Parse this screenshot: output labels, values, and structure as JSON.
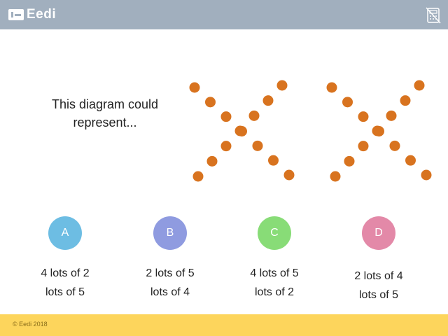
{
  "header": {
    "brand": "Eedi",
    "calculator_icon": "calculator-disabled-icon",
    "background_color": "#a1afbe"
  },
  "question": {
    "text": "This diagram could represent..."
  },
  "diagram": {
    "dot_color": "#d8731f",
    "crosses": [
      {
        "arm_a_dots": 7,
        "arm_b_dots": 7,
        "center_dots": 2
      },
      {
        "arm_a_dots": 7,
        "arm_b_dots": 7,
        "center_dots": 2
      }
    ]
  },
  "options": [
    {
      "letter": "A",
      "line1": "4 lots of 2",
      "line2": "lots of 5",
      "color": "#6dbde3"
    },
    {
      "letter": "B",
      "line1": "2 lots of 5",
      "line2": "lots of 4",
      "color": "#8f9be0"
    },
    {
      "letter": "C",
      "line1": "4 lots of 5",
      "line2": "lots of 2",
      "color": "#88dc77"
    },
    {
      "letter": "D",
      "line1": "2 lots of 4",
      "line2": "lots of 5",
      "color": "#e389a8"
    }
  ],
  "footer": {
    "copyright": "© Eedi 2018",
    "background_color": "#fdd55c"
  }
}
